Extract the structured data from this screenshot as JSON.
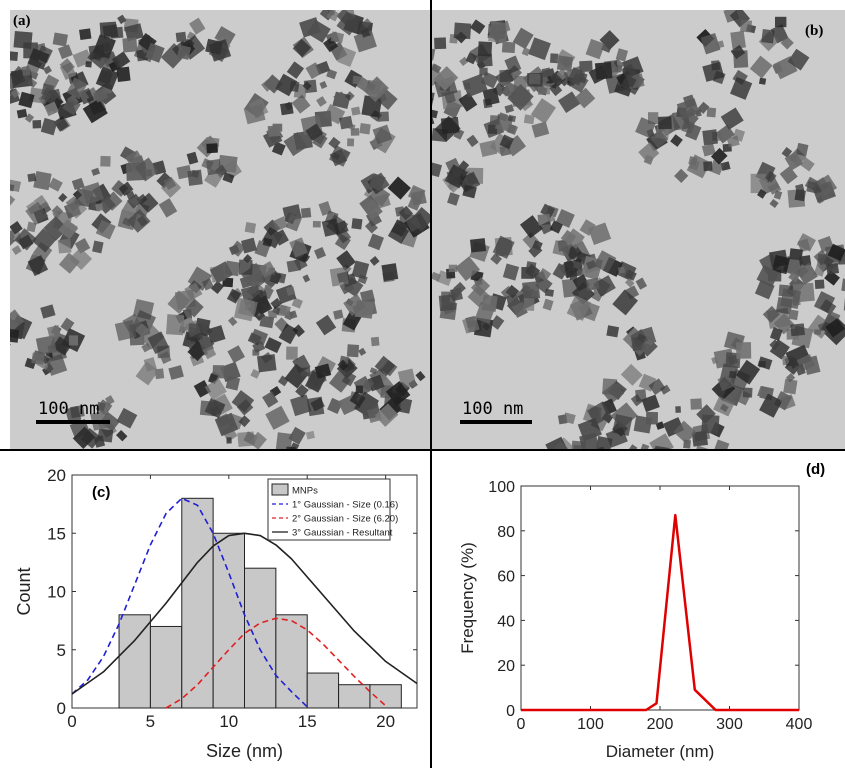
{
  "panels": {
    "a": {
      "label": "(a)",
      "scale_bar": "100 nm"
    },
    "b": {
      "label": "(b)",
      "scale_bar": "100 nm"
    }
  },
  "chart_data": [
    {
      "panel": "(c)",
      "type": "bar",
      "xlabel": "Size  (nm)",
      "ylabel": "Count",
      "xlim": [
        0,
        22
      ],
      "ylim": [
        0,
        20
      ],
      "xticks": [
        0,
        5,
        10,
        15,
        20
      ],
      "yticks": [
        0,
        5,
        10,
        15,
        20
      ],
      "bin_edges": [
        3,
        5,
        7,
        9,
        11,
        13,
        15,
        17,
        19,
        21
      ],
      "values": [
        8,
        7,
        18,
        15,
        12,
        8,
        3,
        2,
        2
      ],
      "legend": [
        "MNPs",
        "1° Gaussian - Size (0.16)",
        "2° Gaussian - Size (6.20)",
        "3° Gaussian - Resultant"
      ],
      "legend_position": "top-right",
      "series": [
        {
          "name": "1° Gaussian - Size (0.16)",
          "style": "dashed",
          "color": "#1f1fd6",
          "x": [
            0,
            1,
            2,
            3,
            4,
            5,
            6,
            7,
            8,
            9,
            10,
            11,
            12,
            13,
            14,
            15
          ],
          "y": [
            1.2,
            2.4,
            4.4,
            7.2,
            10.6,
            14.0,
            16.7,
            18.0,
            17.4,
            15.0,
            11.6,
            8.0,
            5.0,
            2.8,
            1.4,
            0.1
          ]
        },
        {
          "name": "2° Gaussian - Size (6.20)",
          "style": "dashed",
          "color": "#e02020",
          "x": [
            6,
            7,
            8,
            9,
            10,
            11,
            12,
            13,
            14,
            15,
            16,
            17,
            18,
            19,
            20
          ],
          "y": [
            0.0,
            0.8,
            2.0,
            3.5,
            5.0,
            6.4,
            7.3,
            7.7,
            7.5,
            6.7,
            5.5,
            4.1,
            2.7,
            1.4,
            0.2
          ]
        },
        {
          "name": "3° Gaussian - Resultant",
          "style": "solid",
          "color": "#222222",
          "x": [
            0,
            2,
            4,
            6,
            8,
            9,
            10,
            11,
            12,
            13,
            14,
            16,
            18,
            20,
            22
          ],
          "y": [
            1.2,
            3.1,
            5.8,
            9.0,
            12.5,
            13.9,
            14.8,
            15.0,
            14.8,
            14.0,
            12.8,
            9.7,
            6.6,
            4.0,
            2.1
          ]
        }
      ]
    },
    {
      "panel": "(d)",
      "type": "line",
      "xlabel": "Diameter (nm)",
      "ylabel": "Frequency (%)",
      "xlim": [
        0,
        400
      ],
      "ylim": [
        0,
        100
      ],
      "xticks": [
        0,
        100,
        200,
        300,
        400
      ],
      "yticks": [
        0,
        20,
        40,
        60,
        80,
        100
      ],
      "series": [
        {
          "color": "#e00000",
          "x": [
            0,
            180,
            195,
            222,
            250,
            280,
            400
          ],
          "y": [
            0,
            0,
            3,
            87,
            9,
            0,
            0
          ]
        }
      ]
    }
  ]
}
